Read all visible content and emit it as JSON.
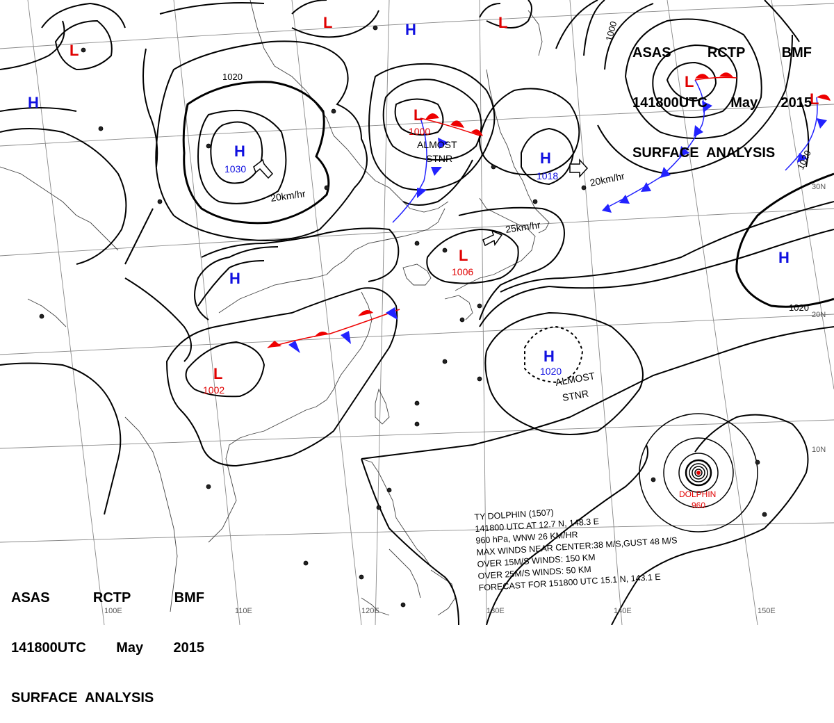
{
  "header": {
    "line1": [
      "ASAS",
      "RCTP",
      "BMF"
    ],
    "line2": [
      "141800UTC",
      "May",
      "2015"
    ],
    "line3": "SURFACE  ANALYSIS"
  },
  "colors": {
    "high": "#1010e0",
    "low": "#e00000",
    "isobar": "#000000",
    "grid": "#888888",
    "coast": "#444444"
  },
  "lat_labels": [
    "30N",
    "20N",
    "10N"
  ],
  "lon_labels": [
    "100E",
    "110E",
    "120E",
    "130E",
    "140E",
    "150E"
  ],
  "isobar_labels": [
    "1020",
    "1000",
    "1020",
    "1020"
  ],
  "pressure_centers": [
    {
      "type": "H",
      "value": "1030"
    },
    {
      "type": "H",
      "value": "1018"
    },
    {
      "type": "H",
      "value": "1020"
    },
    {
      "type": "H",
      "value": ""
    },
    {
      "type": "H",
      "value": ""
    },
    {
      "type": "H",
      "value": ""
    },
    {
      "type": "H",
      "value": ""
    },
    {
      "type": "L",
      "value": "1000"
    },
    {
      "type": "L",
      "value": "1006"
    },
    {
      "type": "L",
      "value": "1002"
    },
    {
      "type": "L",
      "value": ""
    },
    {
      "type": "L",
      "value": ""
    },
    {
      "type": "L",
      "value": ""
    },
    {
      "type": "L",
      "value": ""
    },
    {
      "type": "L",
      "value": ""
    }
  ],
  "motion_labels": [
    "20km/hr",
    "20km/hr",
    "25km/hr"
  ],
  "annotations": [
    "ALMOST",
    "STNR",
    "ALMOST",
    "STNR"
  ],
  "typhoon": {
    "name": "DOLPHIN",
    "pressure": "960",
    "info": [
      "TY  DOLPHIN  (1507)",
      "141800 UTC  AT 12.7 N, 148.3 E",
      "960 hPa, WNW  26 KM/HR",
      "MAX WINDS NEAR CENTER:38 M/S,GUST 48 M/S",
      "OVER 15M/S WINDS: 150 KM",
      "OVER 25M/S WINDS: 50 KM",
      "FORECAST FOR 151800 UTC 15.1 N, 143.1 E"
    ]
  }
}
